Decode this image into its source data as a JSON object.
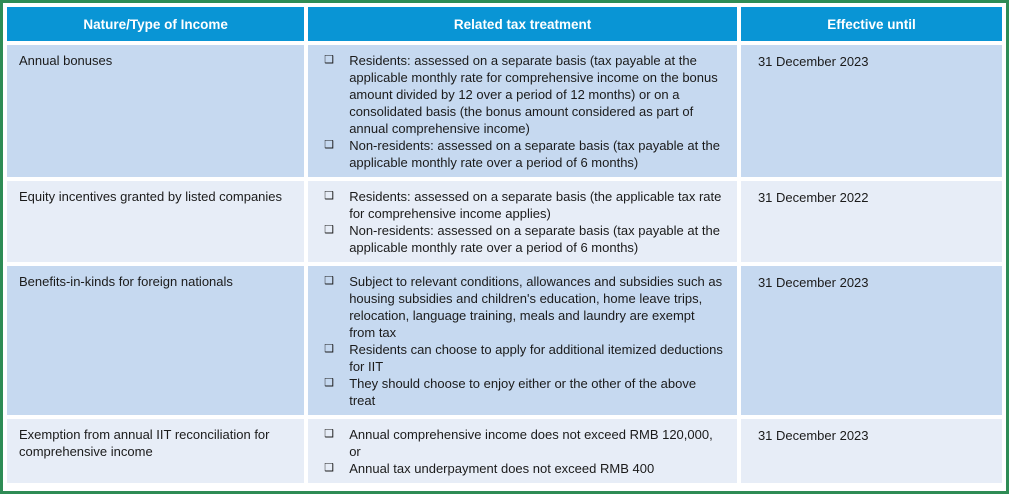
{
  "colors": {
    "header_bg": "#0995d5",
    "border_green": "#2e8c55",
    "row_dark": "#c6d9f0",
    "row_light": "#e7edf7",
    "text_color": "#1b1b1b",
    "header_text": "#ffffff"
  },
  "table": {
    "bullet_glyph": "❑",
    "columns": [
      {
        "label": "Nature/Type of Income"
      },
      {
        "label": "Related tax treatment"
      },
      {
        "label": "Effective until"
      }
    ],
    "rows": [
      {
        "income": "Annual bonuses",
        "treatments": [
          "Residents: assessed on a separate basis (tax payable at the applicable monthly rate for comprehensive income on the bonus amount divided by 12 over a period of 12 months) or on a consolidated basis (the bonus amount considered as part of annual comprehensive income)",
          "Non-residents: assessed on a separate basis (tax payable at the applicable monthly rate over a period of 6 months)"
        ],
        "effective_until": "31 December 2023"
      },
      {
        "income": "Equity incentives granted by listed companies",
        "treatments": [
          "Residents: assessed on a separate basis (the applicable tax rate for comprehensive income applies)",
          "Non-residents: assessed on a separate basis (tax payable at the applicable monthly rate over a period of 6 months)"
        ],
        "effective_until": "31 December 2022"
      },
      {
        "income": "Benefits-in-kinds for foreign nationals",
        "treatments": [
          "Subject to relevant conditions, allowances and subsidies such as housing subsidies and children's education, home leave trips, relocation, language training, meals and laundry are exempt from tax",
          "Residents can choose to apply for additional itemized deductions for IIT",
          "They should choose to enjoy either or the other of the above treat"
        ],
        "effective_until": "31 December 2023"
      },
      {
        "income": "Exemption from annual IIT reconciliation for comprehensive income",
        "treatments": [
          "Annual comprehensive income does not exceed RMB 120,000, or",
          "Annual tax underpayment does not exceed RMB 400"
        ],
        "effective_until": "31 December 2023"
      }
    ]
  }
}
